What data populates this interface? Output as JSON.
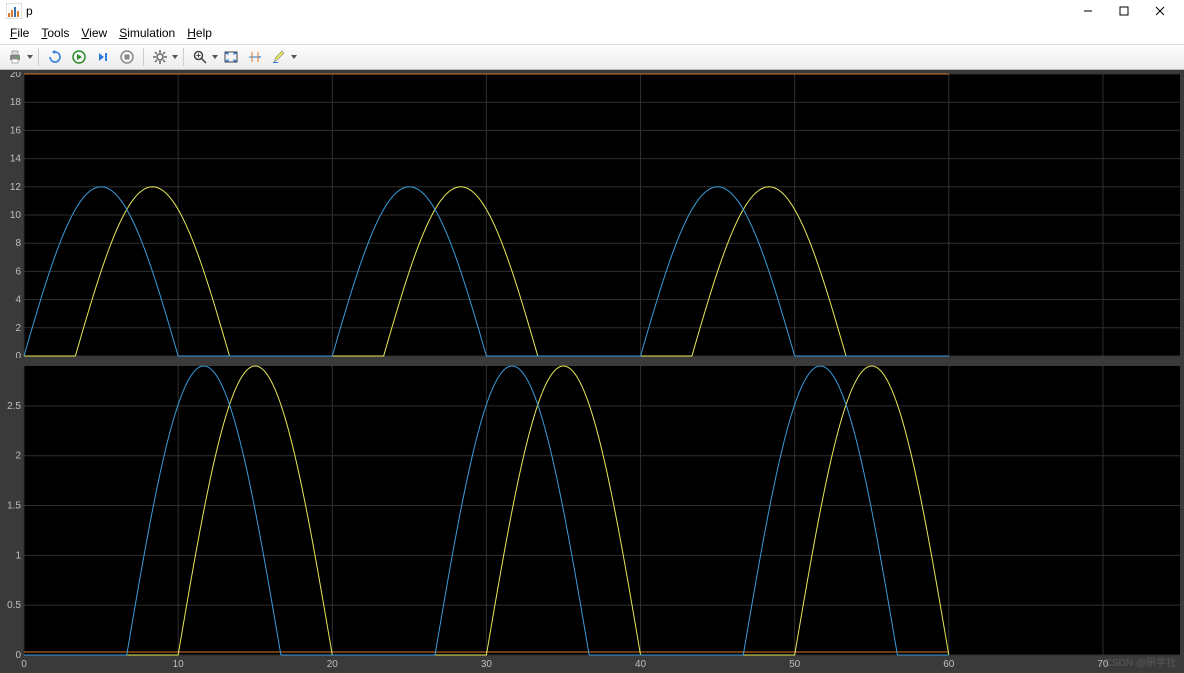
{
  "window": {
    "title": "p",
    "icon_colors": {
      "bg": "#ffffff",
      "bar": "#d97a2b",
      "peak": "#3a6fb0"
    }
  },
  "menu": {
    "items": [
      "File",
      "Tools",
      "View",
      "Simulation",
      "Help"
    ]
  },
  "toolbar": {
    "buttons": [
      {
        "name": "print",
        "dropdown": true
      },
      {
        "name": "restart"
      },
      {
        "name": "run"
      },
      {
        "name": "step-forward"
      },
      {
        "name": "stop"
      },
      {
        "name": "config",
        "dropdown": true
      },
      {
        "name": "zoom",
        "dropdown": true
      },
      {
        "name": "fit-to-view"
      },
      {
        "name": "cursor-measure"
      },
      {
        "name": "highlight",
        "dropdown": true
      }
    ]
  },
  "scope": {
    "background": "#000000",
    "grid_color": "#2f2f2f",
    "tick_color": "#bfbfbf",
    "axes_margin_left": 22,
    "period": 20,
    "x_range": [
      0,
      75
    ],
    "x_ticks": [
      0,
      10,
      20,
      30,
      40,
      50,
      60,
      70
    ],
    "series_colors": {
      "blue": "#3a9bdc",
      "yellow": "#e8e85a",
      "orange": "#d9772b"
    },
    "plot1": {
      "y_range": [
        0,
        20
      ],
      "y_ticks": [
        0,
        2,
        4,
        6,
        8,
        10,
        12,
        14,
        16,
        18,
        20
      ],
      "amplitude": 12,
      "orange_value": 20,
      "blue_phase": 0,
      "yellow_phase": 3.333,
      "signal_end": 60
    },
    "plot2": {
      "y_range": [
        0,
        2.9
      ],
      "y_ticks": [
        0,
        0.5,
        1,
        1.5,
        2,
        2.5
      ],
      "amplitude": 2.9,
      "orange_value": 0.03,
      "blue_phase": 6.666,
      "yellow_phase": 10,
      "signal_end": 60
    }
  },
  "watermark": "CSDN @研学社"
}
